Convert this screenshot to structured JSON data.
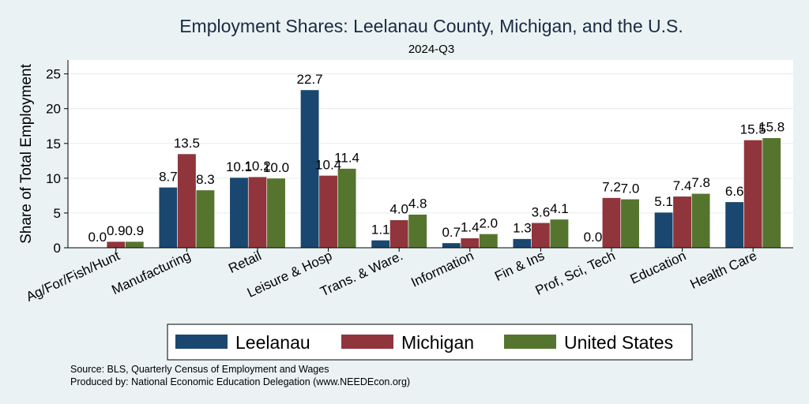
{
  "colors": {
    "background": "#eaf2f3",
    "plot_background": "#ffffff",
    "gridline": "#e6ecee",
    "title": "#1a2a44"
  },
  "chart_data": {
    "type": "bar",
    "title": "Employment Shares: Leelanau County, Michigan, and the U.S.",
    "subtitle": "2024-Q3",
    "xlabel": "",
    "ylabel": "Share of Total Employment",
    "ylim": [
      0,
      27
    ],
    "yticks": [
      0,
      5,
      10,
      15,
      20,
      25
    ],
    "grid": true,
    "legend_position": "bottom",
    "categories": [
      "Ag/For/Fish/Hunt",
      "Manufacturing",
      "Retail",
      "Leisure & Hosp",
      "Trans. & Ware.",
      "Information",
      "Fin & Ins",
      "Prof, Sci, Tech",
      "Education",
      "Health Care"
    ],
    "series": [
      {
        "name": "Leelanau",
        "color": "#1a476f",
        "values": [
          0.0,
          8.7,
          10.1,
          22.7,
          1.1,
          0.7,
          1.3,
          0.0,
          5.1,
          6.6
        ]
      },
      {
        "name": "Michigan",
        "color": "#90353b",
        "values": [
          0.9,
          13.5,
          10.2,
          10.4,
          4.0,
          1.4,
          3.6,
          7.2,
          7.4,
          15.5
        ]
      },
      {
        "name": "United States",
        "color": "#55752f",
        "values": [
          0.9,
          8.3,
          10.0,
          11.4,
          4.8,
          2.0,
          4.1,
          7.0,
          7.8,
          15.8
        ]
      }
    ],
    "data_labels": [
      [
        "0.0",
        "8.7",
        "10.1",
        "22.7",
        "1.1",
        "0.7",
        "1.3",
        "0.0",
        "5.1",
        "6.6"
      ],
      [
        "0.9",
        "13.5",
        "10.2",
        "10.4",
        "4.0",
        "1.4",
        "3.6",
        "7.2",
        "7.4",
        "15.5"
      ],
      [
        "0.9",
        "8.3",
        "10.0",
        "11.4",
        "4.8",
        "2.0",
        "4.1",
        "7.0",
        "7.8",
        "15.8"
      ]
    ]
  },
  "source": {
    "line1": "Source: BLS, Quarterly Census of Employment and Wages",
    "line2": "Produced by: National Economic Education Delegation (www.NEEDEcon.org)"
  }
}
